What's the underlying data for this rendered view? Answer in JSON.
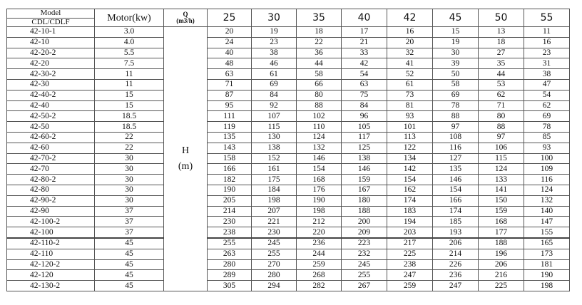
{
  "header": {
    "model_label": "Model",
    "model_sub_label": "CDL/CDLF",
    "motor_label": "Motor(kw)",
    "q_label": "Q",
    "q_unit": "(m3/h)",
    "flow_rates": [
      "25",
      "30",
      "35",
      "40",
      "42",
      "45",
      "50",
      "55"
    ],
    "head_label": "H",
    "head_unit": "(m)"
  },
  "rows": [
    {
      "model": "42-10-1",
      "motor": "3.0",
      "h": [
        "20",
        "19",
        "18",
        "17",
        "16",
        "15",
        "13",
        "11"
      ]
    },
    {
      "model": "42-10",
      "motor": "4.0",
      "h": [
        "24",
        "23",
        "22",
        "21",
        "20",
        "19",
        "18",
        "16"
      ]
    },
    {
      "model": "42-20-2",
      "motor": "5.5",
      "h": [
        "40",
        "38",
        "36",
        "33",
        "32",
        "30",
        "27",
        "23"
      ]
    },
    {
      "model": "42-20",
      "motor": "7.5",
      "h": [
        "48",
        "46",
        "44",
        "42",
        "41",
        "39",
        "35",
        "31"
      ]
    },
    {
      "model": "42-30-2",
      "motor": "11",
      "h": [
        "63",
        "61",
        "58",
        "54",
        "52",
        "50",
        "44",
        "38"
      ]
    },
    {
      "model": "42-30",
      "motor": "11",
      "h": [
        "71",
        "69",
        "66",
        "63",
        "61",
        "58",
        "53",
        "47"
      ]
    },
    {
      "model": "42-40-2",
      "motor": "15",
      "h": [
        "87",
        "84",
        "80",
        "75",
        "73",
        "69",
        "62",
        "54"
      ]
    },
    {
      "model": "42-40",
      "motor": "15",
      "h": [
        "95",
        "92",
        "88",
        "84",
        "81",
        "78",
        "71",
        "62"
      ]
    },
    {
      "model": "42-50-2",
      "motor": "18.5",
      "h": [
        "111",
        "107",
        "102",
        "96",
        "93",
        "88",
        "80",
        "69"
      ]
    },
    {
      "model": "42-50",
      "motor": "18.5",
      "h": [
        "119",
        "115",
        "110",
        "105",
        "101",
        "97",
        "88",
        "78"
      ]
    },
    {
      "model": "42-60-2",
      "motor": "22",
      "h": [
        "135",
        "130",
        "124",
        "117",
        "113",
        "108",
        "97",
        "85"
      ]
    },
    {
      "model": "42-60",
      "motor": "22",
      "h": [
        "143",
        "138",
        "132",
        "125",
        "122",
        "116",
        "106",
        "93"
      ]
    },
    {
      "model": "42-70-2",
      "motor": "30",
      "h": [
        "158",
        "152",
        "146",
        "138",
        "134",
        "127",
        "115",
        "100"
      ]
    },
    {
      "model": "42-70",
      "motor": "30",
      "h": [
        "166",
        "161",
        "154",
        "146",
        "142",
        "135",
        "124",
        "109"
      ]
    },
    {
      "model": "42-80-2",
      "motor": "30",
      "h": [
        "182",
        "175",
        "168",
        "159",
        "154",
        "146",
        "133",
        "116"
      ]
    },
    {
      "model": "42-80",
      "motor": "30",
      "h": [
        "190",
        "184",
        "176",
        "167",
        "162",
        "154",
        "141",
        "124"
      ]
    },
    {
      "model": "42-90-2",
      "motor": "30",
      "h": [
        "205",
        "198",
        "190",
        "180",
        "174",
        "166",
        "150",
        "132"
      ]
    },
    {
      "model": "42-90",
      "motor": "37",
      "h": [
        "214",
        "207",
        "198",
        "188",
        "183",
        "174",
        "159",
        "140"
      ]
    },
    {
      "model": "42-100-2",
      "motor": "37",
      "h": [
        "230",
        "221",
        "212",
        "200",
        "194",
        "185",
        "168",
        "147"
      ]
    },
    {
      "model": "42-100",
      "motor": "37",
      "h": [
        "238",
        "230",
        "220",
        "209",
        "203",
        "193",
        "177",
        "155"
      ]
    },
    {
      "model": "42-110-2",
      "motor": "45",
      "h": [
        "255",
        "245",
        "236",
        "223",
        "217",
        "206",
        "188",
        "165"
      ]
    },
    {
      "model": "42-110",
      "motor": "45",
      "h": [
        "263",
        "255",
        "244",
        "232",
        "225",
        "214",
        "196",
        "173"
      ]
    },
    {
      "model": "42-120-2",
      "motor": "45",
      "h": [
        "280",
        "270",
        "259",
        "245",
        "238",
        "226",
        "206",
        "181"
      ]
    },
    {
      "model": "42-120",
      "motor": "45",
      "h": [
        "289",
        "280",
        "268",
        "255",
        "247",
        "236",
        "216",
        "190"
      ]
    },
    {
      "model": "42-130-2",
      "motor": "45",
      "h": [
        "305",
        "294",
        "282",
        "267",
        "259",
        "247",
        "225",
        "198"
      ]
    }
  ]
}
